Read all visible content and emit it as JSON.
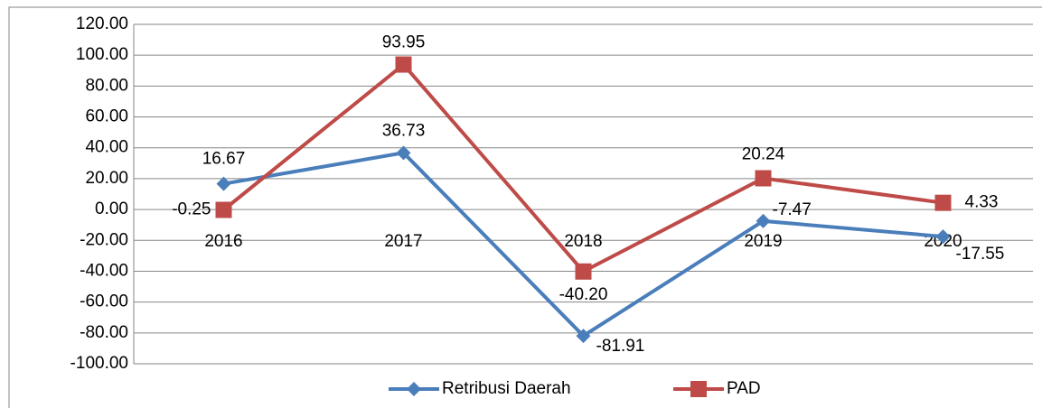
{
  "chart_data": {
    "type": "line",
    "categories": [
      "2016",
      "2017",
      "2018",
      "2019",
      "2020"
    ],
    "series": [
      {
        "name": "Retribusi Daerah",
        "color": "#4a7ebb",
        "marker": "diamond",
        "values": [
          16.67,
          36.73,
          -81.91,
          -7.47,
          -17.55
        ],
        "value_labels": [
          "16.67",
          "36.73",
          "-81.91",
          "-7.47",
          "-17.55"
        ]
      },
      {
        "name": "PAD",
        "color": "#be4b48",
        "marker": "square",
        "values": [
          -0.25,
          93.95,
          -40.2,
          20.24,
          4.33
        ],
        "value_labels": [
          "-0.25",
          "93.95",
          "-40.20",
          "20.24",
          "4.33"
        ]
      }
    ],
    "ylim": [
      -100,
      120
    ],
    "yticks": [
      {
        "value": -100,
        "label": "-100.00"
      },
      {
        "value": -80,
        "label": "-80.00"
      },
      {
        "value": -60,
        "label": "-60.00"
      },
      {
        "value": -40,
        "label": "-40.00"
      },
      {
        "value": -20,
        "label": "-20.00"
      },
      {
        "value": 0,
        "label": "0.00"
      },
      {
        "value": 20,
        "label": "20.00"
      },
      {
        "value": 40,
        "label": "40.00"
      },
      {
        "value": 60,
        "label": "60.00"
      },
      {
        "value": 80,
        "label": "80.00"
      },
      {
        "value": 100,
        "label": "100.00"
      },
      {
        "value": 120,
        "label": "120.00"
      }
    ],
    "grid": true,
    "legend": "bottom"
  }
}
